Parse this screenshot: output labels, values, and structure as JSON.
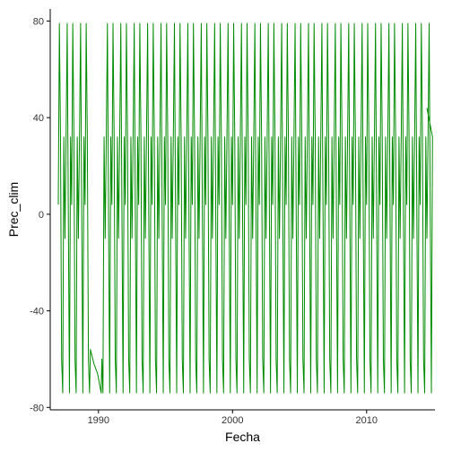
{
  "chart_data": {
    "type": "line",
    "title": "",
    "xlabel": "Fecha",
    "ylabel": "Prec_clim",
    "xlim": [
      1986.4,
      2015.1
    ],
    "ylim": [
      -81,
      85
    ],
    "x_ticks": [
      1990,
      2000,
      2010
    ],
    "x_tick_labels": [
      "1990",
      "2000",
      "2010"
    ],
    "y_ticks": [
      -80,
      -40,
      0,
      40,
      80
    ],
    "y_tick_labels": [
      "-80",
      "-40",
      "0",
      "40",
      "80"
    ],
    "grid": false,
    "legend": "none",
    "series": [
      {
        "color": "#008B00",
        "cycle_start": 1987,
        "n_years": 28,
        "cycle_values": [
          4,
          79,
          32,
          -60,
          -74,
          32,
          -10,
          32,
          79,
          0,
          -74,
          32
        ],
        "end": {
          "x": 2014.5,
          "y": 44
        },
        "anomaly": {
          "x_range": [
            1989.4,
            1990.2
          ],
          "y_values": [
            -56,
            -62,
            -66,
            -74
          ]
        }
      }
    ]
  },
  "axes": {
    "color": "#000000"
  }
}
